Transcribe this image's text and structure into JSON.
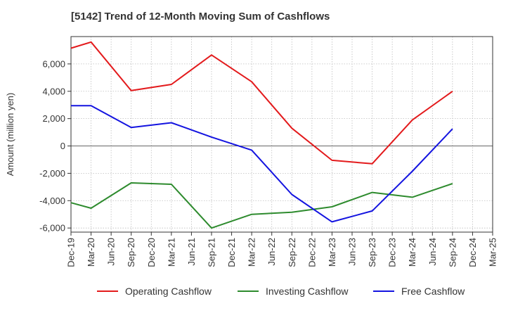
{
  "chart_data": {
    "type": "line",
    "title": "[5142]  Trend of 12-Month Moving Sum of Cashflows",
    "xlabel": "",
    "ylabel": "Amount (million yen)",
    "categories": [
      "Dec-19",
      "Mar-20",
      "Jun-20",
      "Sep-20",
      "Dec-20",
      "Mar-21",
      "Jun-21",
      "Sep-21",
      "Dec-21",
      "Mar-22",
      "Jun-22",
      "Sep-22",
      "Dec-22",
      "Mar-23",
      "Jun-23",
      "Sep-23",
      "Dec-23",
      "Mar-24",
      "Jun-24",
      "Sep-24",
      "Dec-24",
      "Mar-25"
    ],
    "ylim": [
      -6300,
      8000
    ],
    "yticks": [
      -6000,
      -4000,
      -2000,
      0,
      2000,
      4000,
      6000
    ],
    "ytick_labels": [
      "-6,000",
      "-4,000",
      "-2,000",
      "0",
      "2,000",
      "4,000",
      "6,000"
    ],
    "grid": true,
    "legend_position": "bottom",
    "series": [
      {
        "name": "Operating Cashflow",
        "color": "#e31a1c",
        "values": [
          7150,
          7600,
          null,
          4050,
          null,
          4500,
          null,
          6650,
          null,
          4700,
          null,
          1300,
          null,
          -1050,
          null,
          -1300,
          null,
          1900,
          null,
          4000,
          null,
          null
        ]
      },
      {
        "name": "Investing Cashflow",
        "color": "#2e8b2e",
        "values": [
          -4150,
          -4550,
          null,
          -2700,
          null,
          -2800,
          null,
          -6000,
          null,
          -5000,
          null,
          -4850,
          null,
          -4450,
          null,
          -3400,
          null,
          -3750,
          null,
          -2750,
          null,
          null
        ]
      },
      {
        "name": "Free Cashflow",
        "color": "#1414e0",
        "values": [
          2950,
          2950,
          null,
          1350,
          null,
          1700,
          null,
          650,
          null,
          -300,
          null,
          -3550,
          null,
          -5550,
          null,
          -4750,
          null,
          -1850,
          null,
          1250,
          null,
          null
        ]
      }
    ]
  }
}
